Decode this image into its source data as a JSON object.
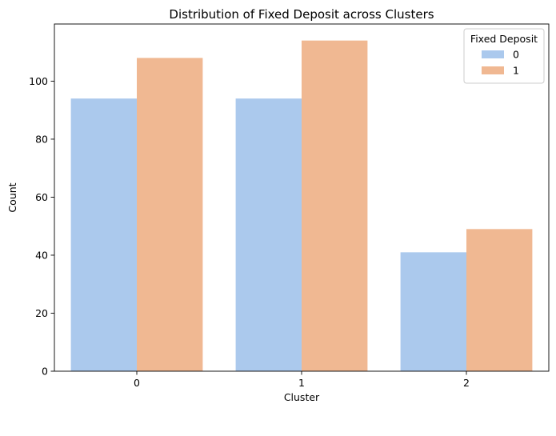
{
  "chart_data": {
    "type": "bar",
    "title": "Distribution of Fixed Deposit across Clusters",
    "xlabel": "Cluster",
    "ylabel": "Count",
    "categories": [
      "0",
      "1",
      "2"
    ],
    "series": [
      {
        "name": "0",
        "values": [
          94,
          94,
          41
        ],
        "color": "#abc9ed"
      },
      {
        "name": "1",
        "values": [
          108,
          114,
          49
        ],
        "color": "#f0b892"
      }
    ],
    "ylim": [
      0,
      119.7
    ],
    "yticks": [
      0,
      20,
      40,
      60,
      80,
      100
    ],
    "legend": {
      "title": "Fixed Deposit",
      "placement": "top-right"
    },
    "grid": false
  }
}
